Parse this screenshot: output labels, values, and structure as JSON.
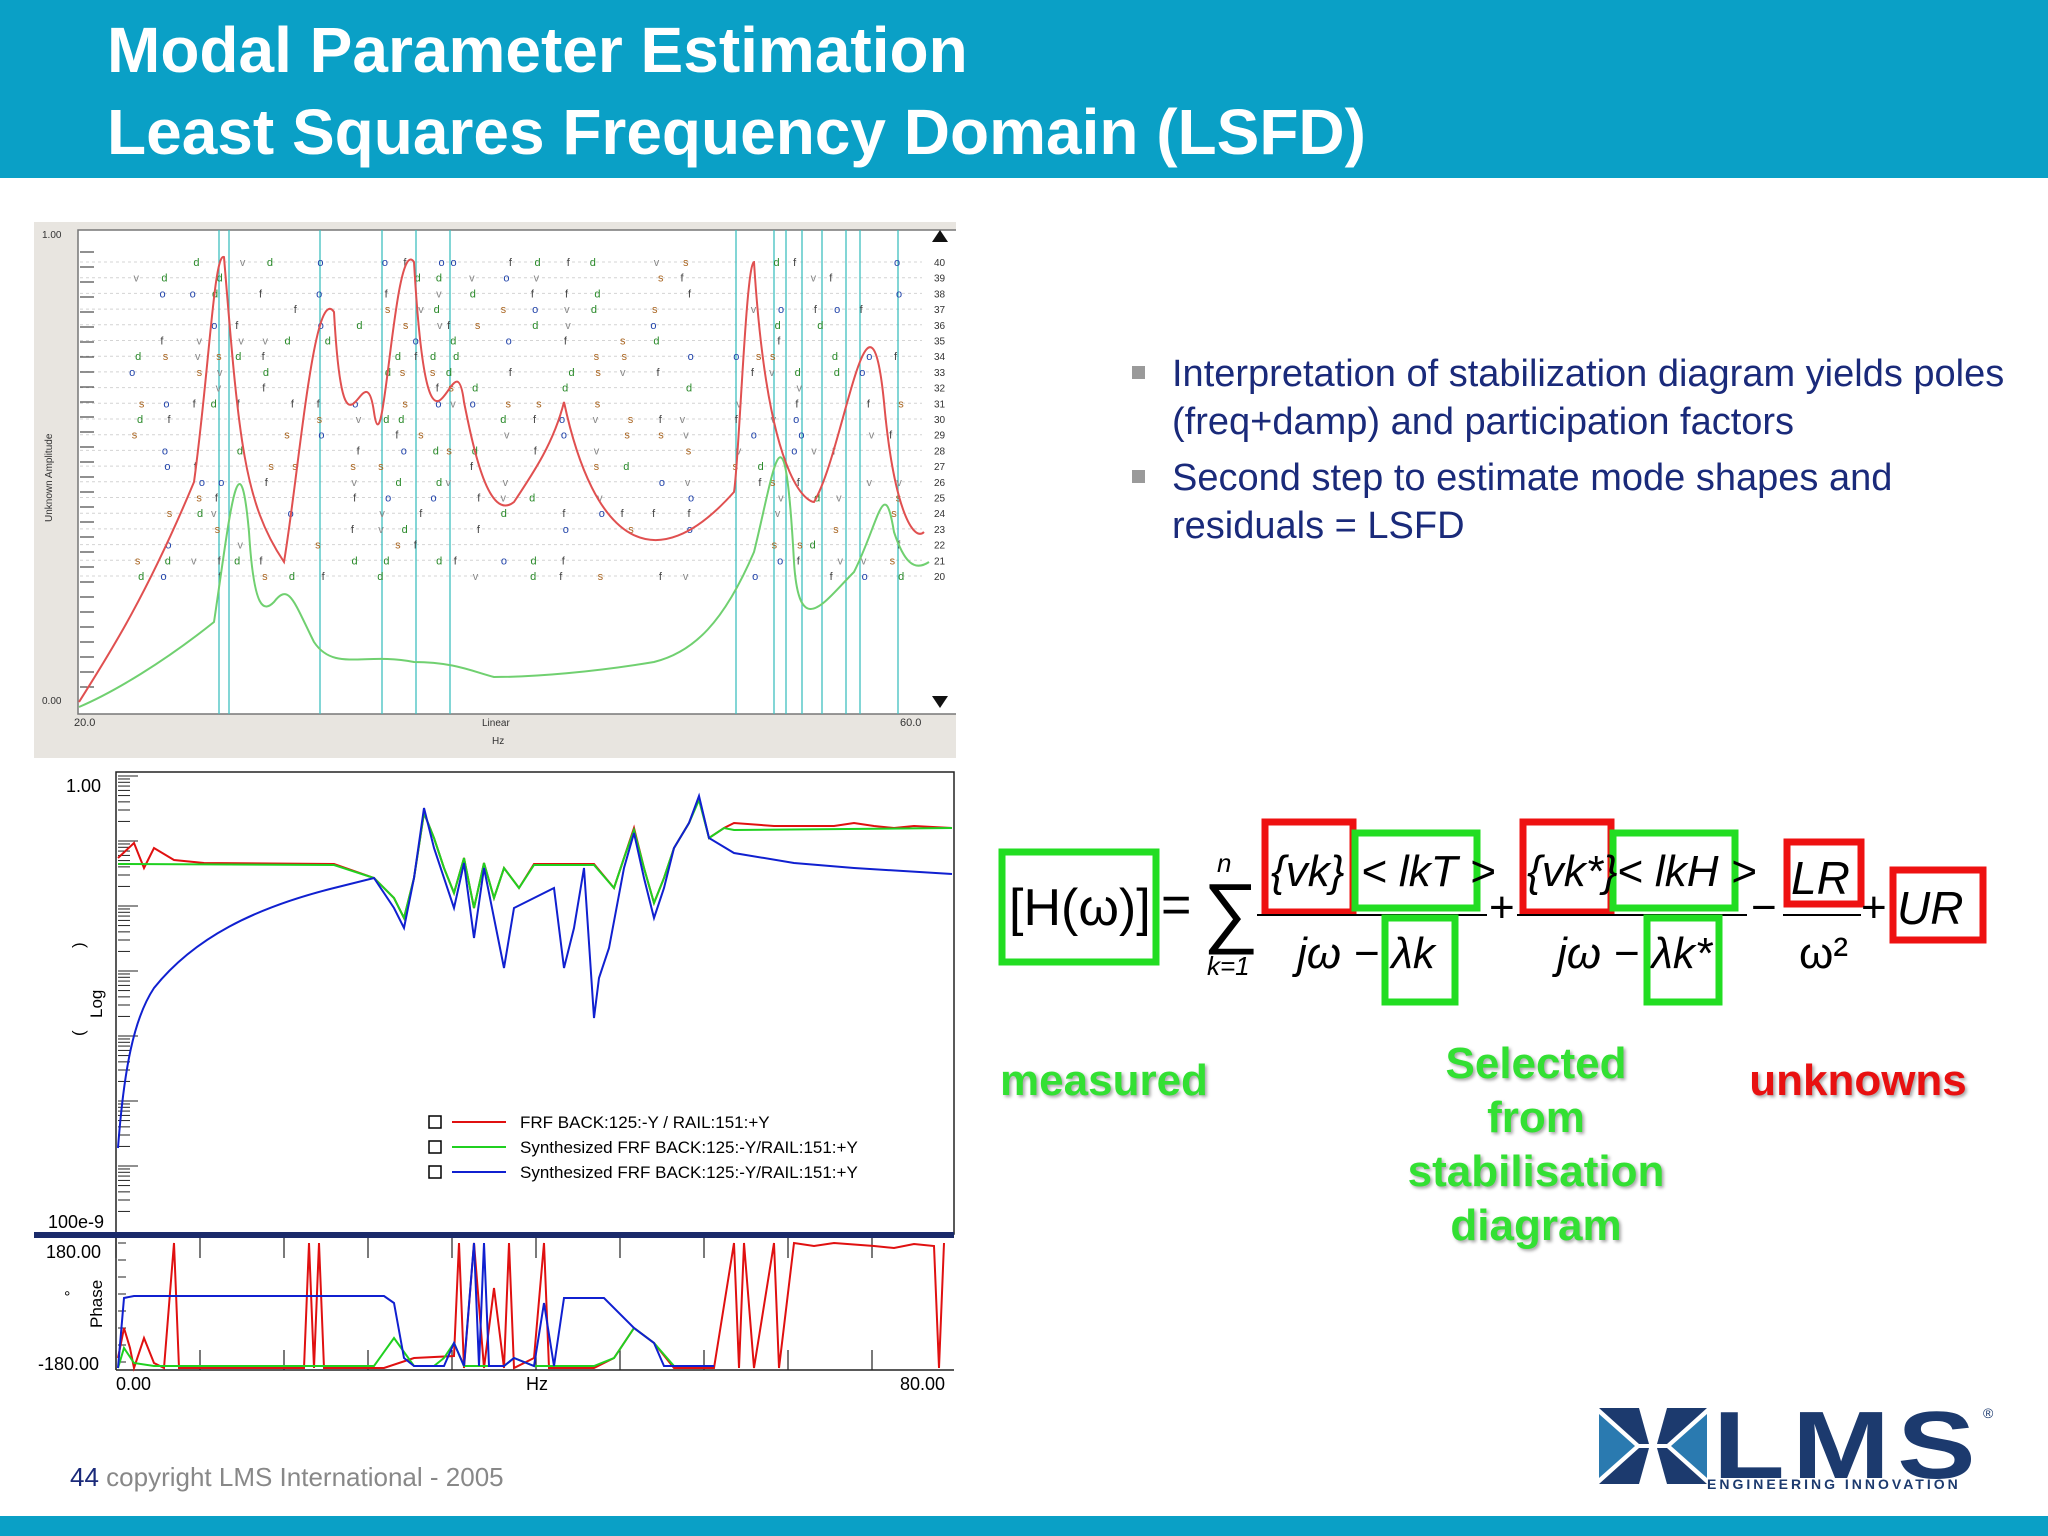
{
  "title": {
    "line1": "Modal Parameter Estimation",
    "line2": "Least Squares Frequency Domain (LSFD)"
  },
  "bullets": [
    "Interpretation of stabilization diagram yields poles (freq+damp) and participation factors",
    "Second step to estimate mode shapes and residuals = LSFD"
  ],
  "stabilization_diagram": {
    "y_top_label": "1.00",
    "y_bottom_label": "0.00",
    "y_axis_label": "Unknown Amplitude",
    "x_min_label": "20.0",
    "x_max_label": "60.0",
    "x_scale_label": "Linear",
    "x_unit_label": "Hz",
    "model_orders": [
      "40",
      "39",
      "38",
      "37",
      "36",
      "35",
      "34",
      "33",
      "32",
      "31",
      "30",
      "29",
      "28",
      "27",
      "26",
      "25",
      "24",
      "23",
      "22",
      "21",
      "20"
    ]
  },
  "frf_plot": {
    "y_top_label": "1.00",
    "y_bottom_label": "100e-9",
    "y_axis_label": "Log",
    "y_axis_paren_open": "(",
    "y_axis_paren_close": ")",
    "phase_top_label": "180.00",
    "phase_bottom_label": "-180.00",
    "phase_axis_label": "Phase",
    "phase_unit": "°",
    "x_min_label": "0.00",
    "x_max_label": "80.00",
    "x_unit_label": "Hz",
    "legend": [
      {
        "label": "FRF BACK:125:-Y / RAIL:151:+Y",
        "color": "#e01010"
      },
      {
        "label": "Synthesized FRF BACK:125:-Y/RAIL:151:+Y",
        "color": "#20d020"
      },
      {
        "label": "Synthesized FRF BACK:125:-Y/RAIL:151:+Y",
        "color": "#1020d0"
      }
    ]
  },
  "equation": {
    "lhs": "[H(ω)]",
    "sum_upper": "n",
    "sum_lower": "k=1",
    "term1_num_v": "{vk}",
    "term1_num_l": "< lkT >",
    "term1_den": "jω − λk",
    "term2_num_v": "{vk*}",
    "term2_num_l": "< lkH >",
    "term2_den": "jω − λk*",
    "lr_num": "LR",
    "lr_den": "ω²",
    "ur": "UR",
    "box_measured_color": "#22dd22",
    "box_unknown_color": "#ee1111"
  },
  "labels": {
    "measured": "measured",
    "selected": [
      "Selected",
      "from",
      "stabilisation",
      "diagram"
    ],
    "unknowns": "unknowns"
  },
  "footer": {
    "page_number": "44",
    "copyright": "copyright LMS International - 2005"
  },
  "logo": {
    "name": "LMS",
    "tagline": "ENGINEERING INNOVATION",
    "registered": "®",
    "color": "#1c3a6e"
  }
}
